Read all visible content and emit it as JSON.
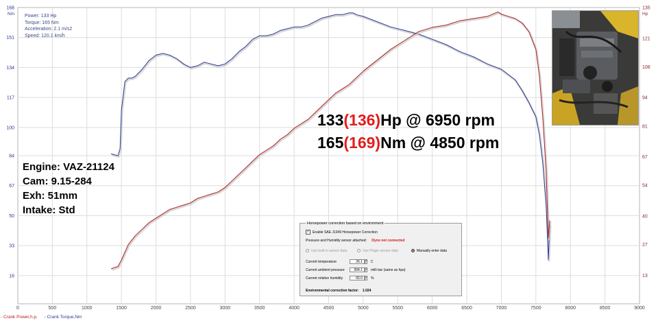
{
  "readout": {
    "power": "Power: 133 Hp",
    "torque": "Torque: 165 Nm",
    "acceleration": "Acceleration: 2.1 m/s2",
    "speed": "Speed: 120.1 km/h"
  },
  "engine_info": {
    "engine": "Engine: VAZ-21124",
    "cam": "Cam: 9.15-284",
    "exh": "Exh: 51mm",
    "intake": "Intake: Std"
  },
  "headline": {
    "hp_value": "133",
    "hp_corrected": "(136)",
    "hp_suffix": "Hp @ 6950 rpm",
    "nm_value": "165",
    "nm_corrected": "(169)",
    "nm_suffix": "Nm @ 4850 rpm"
  },
  "correction_panel": {
    "title": "Horsepower correction based on environment",
    "enable_label": "Enable SAE J1349 Horsepower Correction",
    "enable_checked": true,
    "sensor_label": "Pressure and Humidity sensor attached:",
    "sensor_status": "Dyno not connected",
    "option_builtin": "Use built in sensor data",
    "option_plugin": "Use Plugin sensor data",
    "option_manual": "Manually enter data",
    "temp_label": "Current temperature",
    "temp_value": "26.1",
    "temp_unit": "C",
    "pressure_label": "Current ambient pressure",
    "pressure_value": "994.1",
    "pressure_unit": "milli bar (same as hpa)",
    "humidity_label": "Current relative humidity",
    "humidity_value": "65.0",
    "humidity_unit": "%",
    "factor_label": "Environmental correction factor:",
    "factor_value": "1.024"
  },
  "legend": {
    "power": "- Crank Power,h.p.",
    "torque": "- Crank Torque,Nm"
  },
  "colors": {
    "power": "#b21f1f",
    "torque": "#2b3b95",
    "grid": "#dcdcdc",
    "axis": "#444444"
  },
  "photo_icon": "engine-bay-photo",
  "chart_data": {
    "type": "line",
    "x_ticks": [
      0,
      500,
      1000,
      1500,
      2000,
      2500,
      3000,
      3500,
      4000,
      4500,
      5000,
      5500,
      6000,
      6500,
      7000,
      7500,
      8000,
      8500,
      9000
    ],
    "xlim": [
      0,
      9000
    ],
    "left_axis": {
      "unit": "Nm",
      "ylim": [
        0,
        168
      ],
      "ticks": [
        16,
        33,
        50,
        67,
        84,
        100,
        117,
        134,
        151,
        168
      ]
    },
    "right_axis": {
      "unit": "Hp",
      "ylim": [
        0,
        135
      ],
      "ticks": [
        13,
        27,
        40,
        54,
        67,
        81,
        94,
        108,
        121,
        135
      ]
    },
    "grid": true,
    "series": [
      {
        "name": "Crank Torque,Nm",
        "axis": "left",
        "points": [
          [
            1350,
            85
          ],
          [
            1450,
            84
          ],
          [
            1480,
            88
          ],
          [
            1500,
            110
          ],
          [
            1550,
            126
          ],
          [
            1600,
            128
          ],
          [
            1650,
            128
          ],
          [
            1700,
            129
          ],
          [
            1800,
            133
          ],
          [
            1900,
            138
          ],
          [
            2000,
            141
          ],
          [
            2100,
            142
          ],
          [
            2200,
            141
          ],
          [
            2300,
            139
          ],
          [
            2400,
            136
          ],
          [
            2500,
            134
          ],
          [
            2600,
            135
          ],
          [
            2700,
            137
          ],
          [
            2800,
            136
          ],
          [
            2900,
            135
          ],
          [
            3000,
            136
          ],
          [
            3100,
            139
          ],
          [
            3200,
            143
          ],
          [
            3300,
            146
          ],
          [
            3400,
            150
          ],
          [
            3500,
            152
          ],
          [
            3600,
            152
          ],
          [
            3700,
            153
          ],
          [
            3800,
            155
          ],
          [
            3900,
            156
          ],
          [
            4000,
            157
          ],
          [
            4100,
            157
          ],
          [
            4200,
            158
          ],
          [
            4300,
            160
          ],
          [
            4400,
            162
          ],
          [
            4500,
            163
          ],
          [
            4600,
            164
          ],
          [
            4700,
            164
          ],
          [
            4800,
            165
          ],
          [
            4850,
            165
          ],
          [
            4900,
            164
          ],
          [
            5000,
            163
          ],
          [
            5200,
            160
          ],
          [
            5400,
            157
          ],
          [
            5600,
            155
          ],
          [
            5800,
            153
          ],
          [
            6000,
            150
          ],
          [
            6200,
            147
          ],
          [
            6400,
            143
          ],
          [
            6600,
            140
          ],
          [
            6800,
            136
          ],
          [
            7000,
            133
          ],
          [
            7200,
            127
          ],
          [
            7300,
            121
          ],
          [
            7400,
            114
          ],
          [
            7500,
            106
          ],
          [
            7550,
            96
          ],
          [
            7600,
            80
          ],
          [
            7650,
            55
          ],
          [
            7680,
            25
          ],
          [
            7700,
            45
          ]
        ]
      },
      {
        "name": "Crank Power,h.p.",
        "axis": "right",
        "points": [
          [
            1350,
            16
          ],
          [
            1450,
            17
          ],
          [
            1500,
            20
          ],
          [
            1600,
            27
          ],
          [
            1700,
            31
          ],
          [
            1800,
            34
          ],
          [
            1900,
            37
          ],
          [
            2000,
            39
          ],
          [
            2100,
            41
          ],
          [
            2200,
            43
          ],
          [
            2300,
            44
          ],
          [
            2400,
            45
          ],
          [
            2500,
            46
          ],
          [
            2600,
            48
          ],
          [
            2700,
            49
          ],
          [
            2800,
            50
          ],
          [
            2900,
            51
          ],
          [
            3000,
            53
          ],
          [
            3100,
            56
          ],
          [
            3200,
            59
          ],
          [
            3300,
            62
          ],
          [
            3400,
            65
          ],
          [
            3500,
            68
          ],
          [
            3600,
            70
          ],
          [
            3700,
            72
          ],
          [
            3800,
            75
          ],
          [
            3900,
            77
          ],
          [
            4000,
            80
          ],
          [
            4100,
            82
          ],
          [
            4200,
            84
          ],
          [
            4300,
            87
          ],
          [
            4400,
            90
          ],
          [
            4500,
            93
          ],
          [
            4600,
            96
          ],
          [
            4700,
            98
          ],
          [
            4800,
            100
          ],
          [
            4900,
            103
          ],
          [
            5000,
            106
          ],
          [
            5200,
            111
          ],
          [
            5400,
            116
          ],
          [
            5600,
            120
          ],
          [
            5800,
            124
          ],
          [
            6000,
            126
          ],
          [
            6200,
            127
          ],
          [
            6400,
            129
          ],
          [
            6600,
            130
          ],
          [
            6800,
            131
          ],
          [
            6950,
            133
          ],
          [
            7000,
            132
          ],
          [
            7100,
            131
          ],
          [
            7200,
            130
          ],
          [
            7300,
            128
          ],
          [
            7400,
            124
          ],
          [
            7500,
            116
          ],
          [
            7550,
            104
          ],
          [
            7600,
            85
          ],
          [
            7650,
            60
          ],
          [
            7680,
            30
          ],
          [
            7700,
            38
          ]
        ]
      }
    ]
  }
}
